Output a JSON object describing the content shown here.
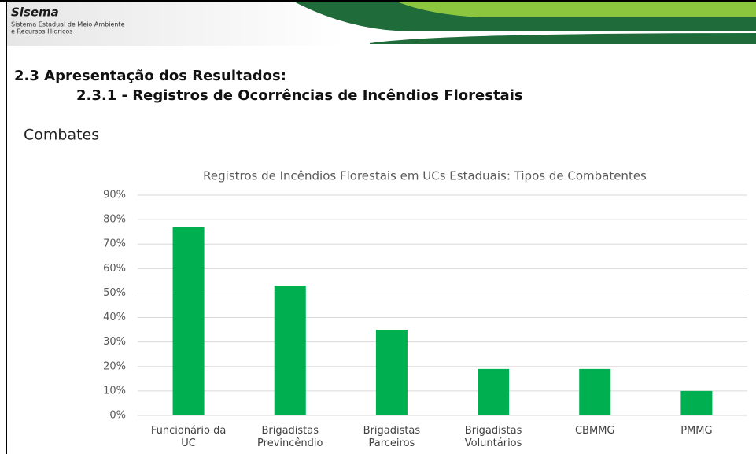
{
  "header": {
    "brand": "Sisema",
    "subtitle_line1": "Sistema Estadual de Meio Ambiente",
    "subtitle_line2": "e Recursos Hídricos"
  },
  "heading": "2.3 Apresentação dos Resultados:",
  "subheading": "2.3.1 - Registros de Ocorrências de Incêndios Florestais",
  "section": "Combates",
  "chart_data": {
    "type": "bar",
    "title": "Registros de Incêndios Florestais em UCs Estaduais: Tipos de Combatentes",
    "categories": [
      "Funcionário da UC",
      "Brigadistas Previncêndio",
      "Brigadistas Parceiros",
      "Brigadistas Voluntários",
      "CBMMG",
      "PMMG"
    ],
    "values": [
      77,
      53,
      35,
      19,
      19,
      10
    ],
    "color": "#00b050",
    "ylim": [
      0,
      90
    ],
    "yticks": [
      {
        "value": 0,
        "label": "0%"
      },
      {
        "value": 10,
        "label": "10%"
      },
      {
        "value": 20,
        "label": "20%"
      },
      {
        "value": 30,
        "label": "30%"
      },
      {
        "value": 40,
        "label": "40%"
      },
      {
        "value": 50,
        "label": "50%"
      },
      {
        "value": 60,
        "label": "60%"
      },
      {
        "value": 70,
        "label": "70%"
      },
      {
        "value": 80,
        "label": "80%"
      },
      {
        "value": 90,
        "label": "90%"
      }
    ],
    "grid": true
  }
}
